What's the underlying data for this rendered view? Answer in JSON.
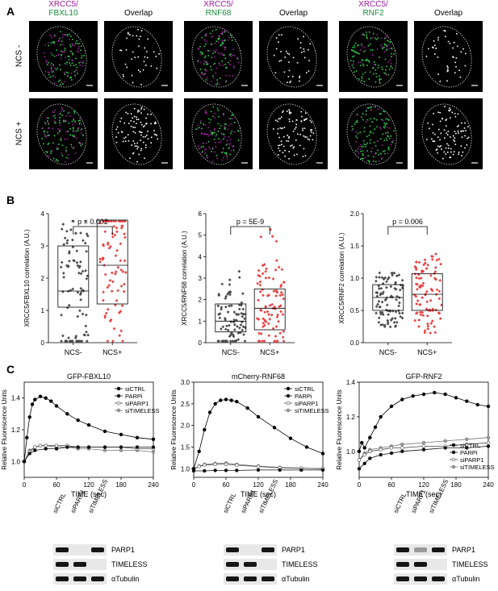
{
  "panels": {
    "a": "A",
    "b": "B",
    "c": "C"
  },
  "panelA": {
    "groups": [
      {
        "marker": "XRCC5/",
        "partner": "FBXL10",
        "overlap": "Overlap"
      },
      {
        "marker": "XRCC5/",
        "partner": "RNF68",
        "overlap": "Overlap"
      },
      {
        "marker": "XRCC5/",
        "partner": "RNF2",
        "overlap": "Overlap"
      }
    ],
    "rows": [
      "NCS -",
      "NCS +"
    ],
    "colors": {
      "marker": "#9b1d9b",
      "partner": "#1a8a3a"
    }
  },
  "panelB": {
    "plots": [
      {
        "ylabel": "XRCC5/FBXL10 correlation (A.U.)",
        "ylim": [
          0,
          4
        ],
        "yticks": [
          "0",
          "1",
          "2",
          "3",
          "4"
        ],
        "pvalue": "p = 0.002",
        "categories": [
          "NCS-",
          "NCS+"
        ],
        "boxes": [
          {
            "q1": 1.1,
            "median": 1.6,
            "q3": 3.0
          },
          {
            "q1": 1.2,
            "median": 2.4,
            "q3": 3.8
          }
        ]
      },
      {
        "ylabel": "XRCC5/RNF68 correlation (A.U.)",
        "ylim": [
          0,
          6
        ],
        "yticks": [
          "0",
          "1",
          "2",
          "3",
          "4",
          "5",
          "6"
        ],
        "pvalue": "p = 5E-9",
        "categories": [
          "NCS-",
          "NCS+"
        ],
        "boxes": [
          {
            "q1": 0.5,
            "median": 1.0,
            "q3": 1.8
          },
          {
            "q1": 0.6,
            "median": 1.6,
            "q3": 2.5
          }
        ]
      },
      {
        "ylabel": "XRCC5/RNF2 correlation (A.U.)",
        "ylim": [
          0,
          2
        ],
        "yticks": [
          "0.0",
          "0.5",
          "1.0",
          "1.5",
          "2.0"
        ],
        "pvalue": "p = 0.006",
        "categories": [
          "NCS-",
          "NCS+"
        ],
        "boxes": [
          {
            "q1": 0.5,
            "median": 0.7,
            "q3": 0.9
          },
          {
            "q1": 0.5,
            "median": 0.75,
            "q3": 1.07
          }
        ]
      }
    ],
    "colors": {
      "ncsminus": "#4a4a4a",
      "ncsplus": "#e84040"
    }
  },
  "chart_data": [
    {
      "type": "line",
      "title": "GFP-FBXL10",
      "xlabel": "TIME (sec)",
      "ylabel": "Relative Fluorescence Units",
      "xlim": [
        0,
        240
      ],
      "ylim": [
        0.9,
        1.5
      ],
      "xticks": [
        "0",
        "60",
        "120",
        "180",
        "240"
      ],
      "yticks": [
        "1.0",
        "1.2",
        "1.4"
      ],
      "legend": "top-right",
      "series": [
        {
          "name": "siCTRL",
          "x": [
            0,
            5,
            10,
            15,
            20,
            30,
            40,
            50,
            60,
            80,
            100,
            120,
            150,
            180,
            210,
            240
          ],
          "values": [
            1.0,
            1.15,
            1.28,
            1.36,
            1.39,
            1.41,
            1.4,
            1.38,
            1.35,
            1.3,
            1.26,
            1.23,
            1.19,
            1.17,
            1.15,
            1.14
          ]
        },
        {
          "name": "PARPi",
          "x": [
            0,
            10,
            20,
            40,
            60,
            80,
            100,
            120,
            150,
            180,
            210,
            240
          ],
          "values": [
            1.0,
            1.05,
            1.07,
            1.08,
            1.08,
            1.09,
            1.09,
            1.09,
            1.09,
            1.09,
            1.09,
            1.09
          ]
        },
        {
          "name": "siPARP1",
          "x": [
            0,
            10,
            20,
            30,
            40,
            60,
            80,
            100,
            120,
            150,
            180,
            210,
            240
          ],
          "values": [
            1.0,
            1.06,
            1.09,
            1.1,
            1.1,
            1.1,
            1.1,
            1.09,
            1.09,
            1.09,
            1.09,
            1.08,
            1.08
          ]
        },
        {
          "name": "siTIMELESS",
          "x": [
            0,
            10,
            20,
            30,
            40,
            60,
            80,
            100,
            120,
            150,
            180,
            210,
            240
          ],
          "values": [
            1.0,
            1.07,
            1.09,
            1.1,
            1.1,
            1.09,
            1.09,
            1.08,
            1.08,
            1.07,
            1.07,
            1.07,
            1.06
          ]
        }
      ]
    },
    {
      "type": "line",
      "title": "mCherry-RNF68",
      "xlabel": "TIME (sec)",
      "ylabel": "Relative Fluorescence Units",
      "xlim": [
        0,
        240
      ],
      "ylim": [
        0.8,
        3.0
      ],
      "xticks": [
        "0",
        "60",
        "120",
        "180",
        "240"
      ],
      "yticks": [
        "1.0",
        "1.5",
        "2.0",
        "2.5",
        "3.0"
      ],
      "legend": "top-right",
      "series": [
        {
          "name": "siCTRL",
          "x": [
            0,
            10,
            20,
            30,
            40,
            50,
            60,
            70,
            80,
            100,
            120,
            150,
            180,
            210,
            240
          ],
          "values": [
            1.0,
            1.4,
            1.9,
            2.3,
            2.5,
            2.58,
            2.6,
            2.58,
            2.55,
            2.4,
            2.2,
            1.95,
            1.7,
            1.5,
            1.35
          ]
        },
        {
          "name": "PARPi",
          "x": [
            0,
            20,
            40,
            60,
            80,
            120,
            160,
            200,
            240
          ],
          "values": [
            0.95,
            0.95,
            0.96,
            0.96,
            0.96,
            0.97,
            0.97,
            0.97,
            0.97
          ]
        },
        {
          "name": "siPARP1",
          "x": [
            0,
            10,
            20,
            40,
            60,
            80,
            120,
            160,
            200,
            240
          ],
          "values": [
            1.0,
            1.05,
            1.08,
            1.1,
            1.1,
            1.08,
            1.05,
            1.02,
            1.01,
            1.0
          ]
        },
        {
          "name": "siTIMELESS",
          "x": [
            0,
            10,
            20,
            40,
            60,
            80,
            120,
            160,
            200,
            240
          ],
          "values": [
            1.0,
            1.06,
            1.1,
            1.12,
            1.13,
            1.1,
            1.06,
            1.03,
            1.01,
            1.0
          ]
        }
      ]
    },
    {
      "type": "line",
      "title": "GFP-RNF2",
      "xlabel": "TIME (sec)",
      "ylabel": "Relative Fluorescence Units",
      "xlim": [
        0,
        240
      ],
      "ylim": [
        0.85,
        1.4
      ],
      "xticks": [
        "0",
        "60",
        "120",
        "180",
        "240"
      ],
      "yticks": [
        "1.0",
        "1.2",
        "1.4"
      ],
      "legend": "bottom-right",
      "series": [
        {
          "name": "siCTRL",
          "x": [
            0,
            5,
            10,
            20,
            30,
            40,
            60,
            80,
            100,
            120,
            140,
            160,
            180,
            200,
            220,
            240
          ],
          "values": [
            1.0,
            1.05,
            1.02,
            1.08,
            1.14,
            1.2,
            1.26,
            1.3,
            1.32,
            1.33,
            1.34,
            1.33,
            1.31,
            1.29,
            1.27,
            1.26
          ]
        },
        {
          "name": "PARPi",
          "x": [
            0,
            10,
            20,
            40,
            60,
            80,
            120,
            160,
            200,
            240
          ],
          "values": [
            0.9,
            0.93,
            0.96,
            0.98,
            0.99,
            1.0,
            1.01,
            1.02,
            1.02,
            1.03
          ]
        },
        {
          "name": "siPARP1",
          "x": [
            0,
            10,
            20,
            40,
            60,
            80,
            120,
            160,
            200,
            240
          ],
          "values": [
            0.95,
            0.98,
            1.0,
            1.01,
            1.02,
            1.02,
            1.03,
            1.03,
            1.04,
            1.05
          ]
        },
        {
          "name": "siTIMELESS",
          "x": [
            0,
            10,
            20,
            40,
            60,
            80,
            120,
            160,
            200,
            240
          ],
          "values": [
            0.95,
            0.99,
            1.01,
            1.02,
            1.03,
            1.04,
            1.05,
            1.06,
            1.07,
            1.08
          ]
        }
      ]
    }
  ],
  "blots": {
    "lanes": [
      "siCTRL",
      "siPARP1",
      "siTIMELESS"
    ],
    "rows": [
      "PARP1",
      "TIMELESS",
      "αTubulin"
    ]
  }
}
